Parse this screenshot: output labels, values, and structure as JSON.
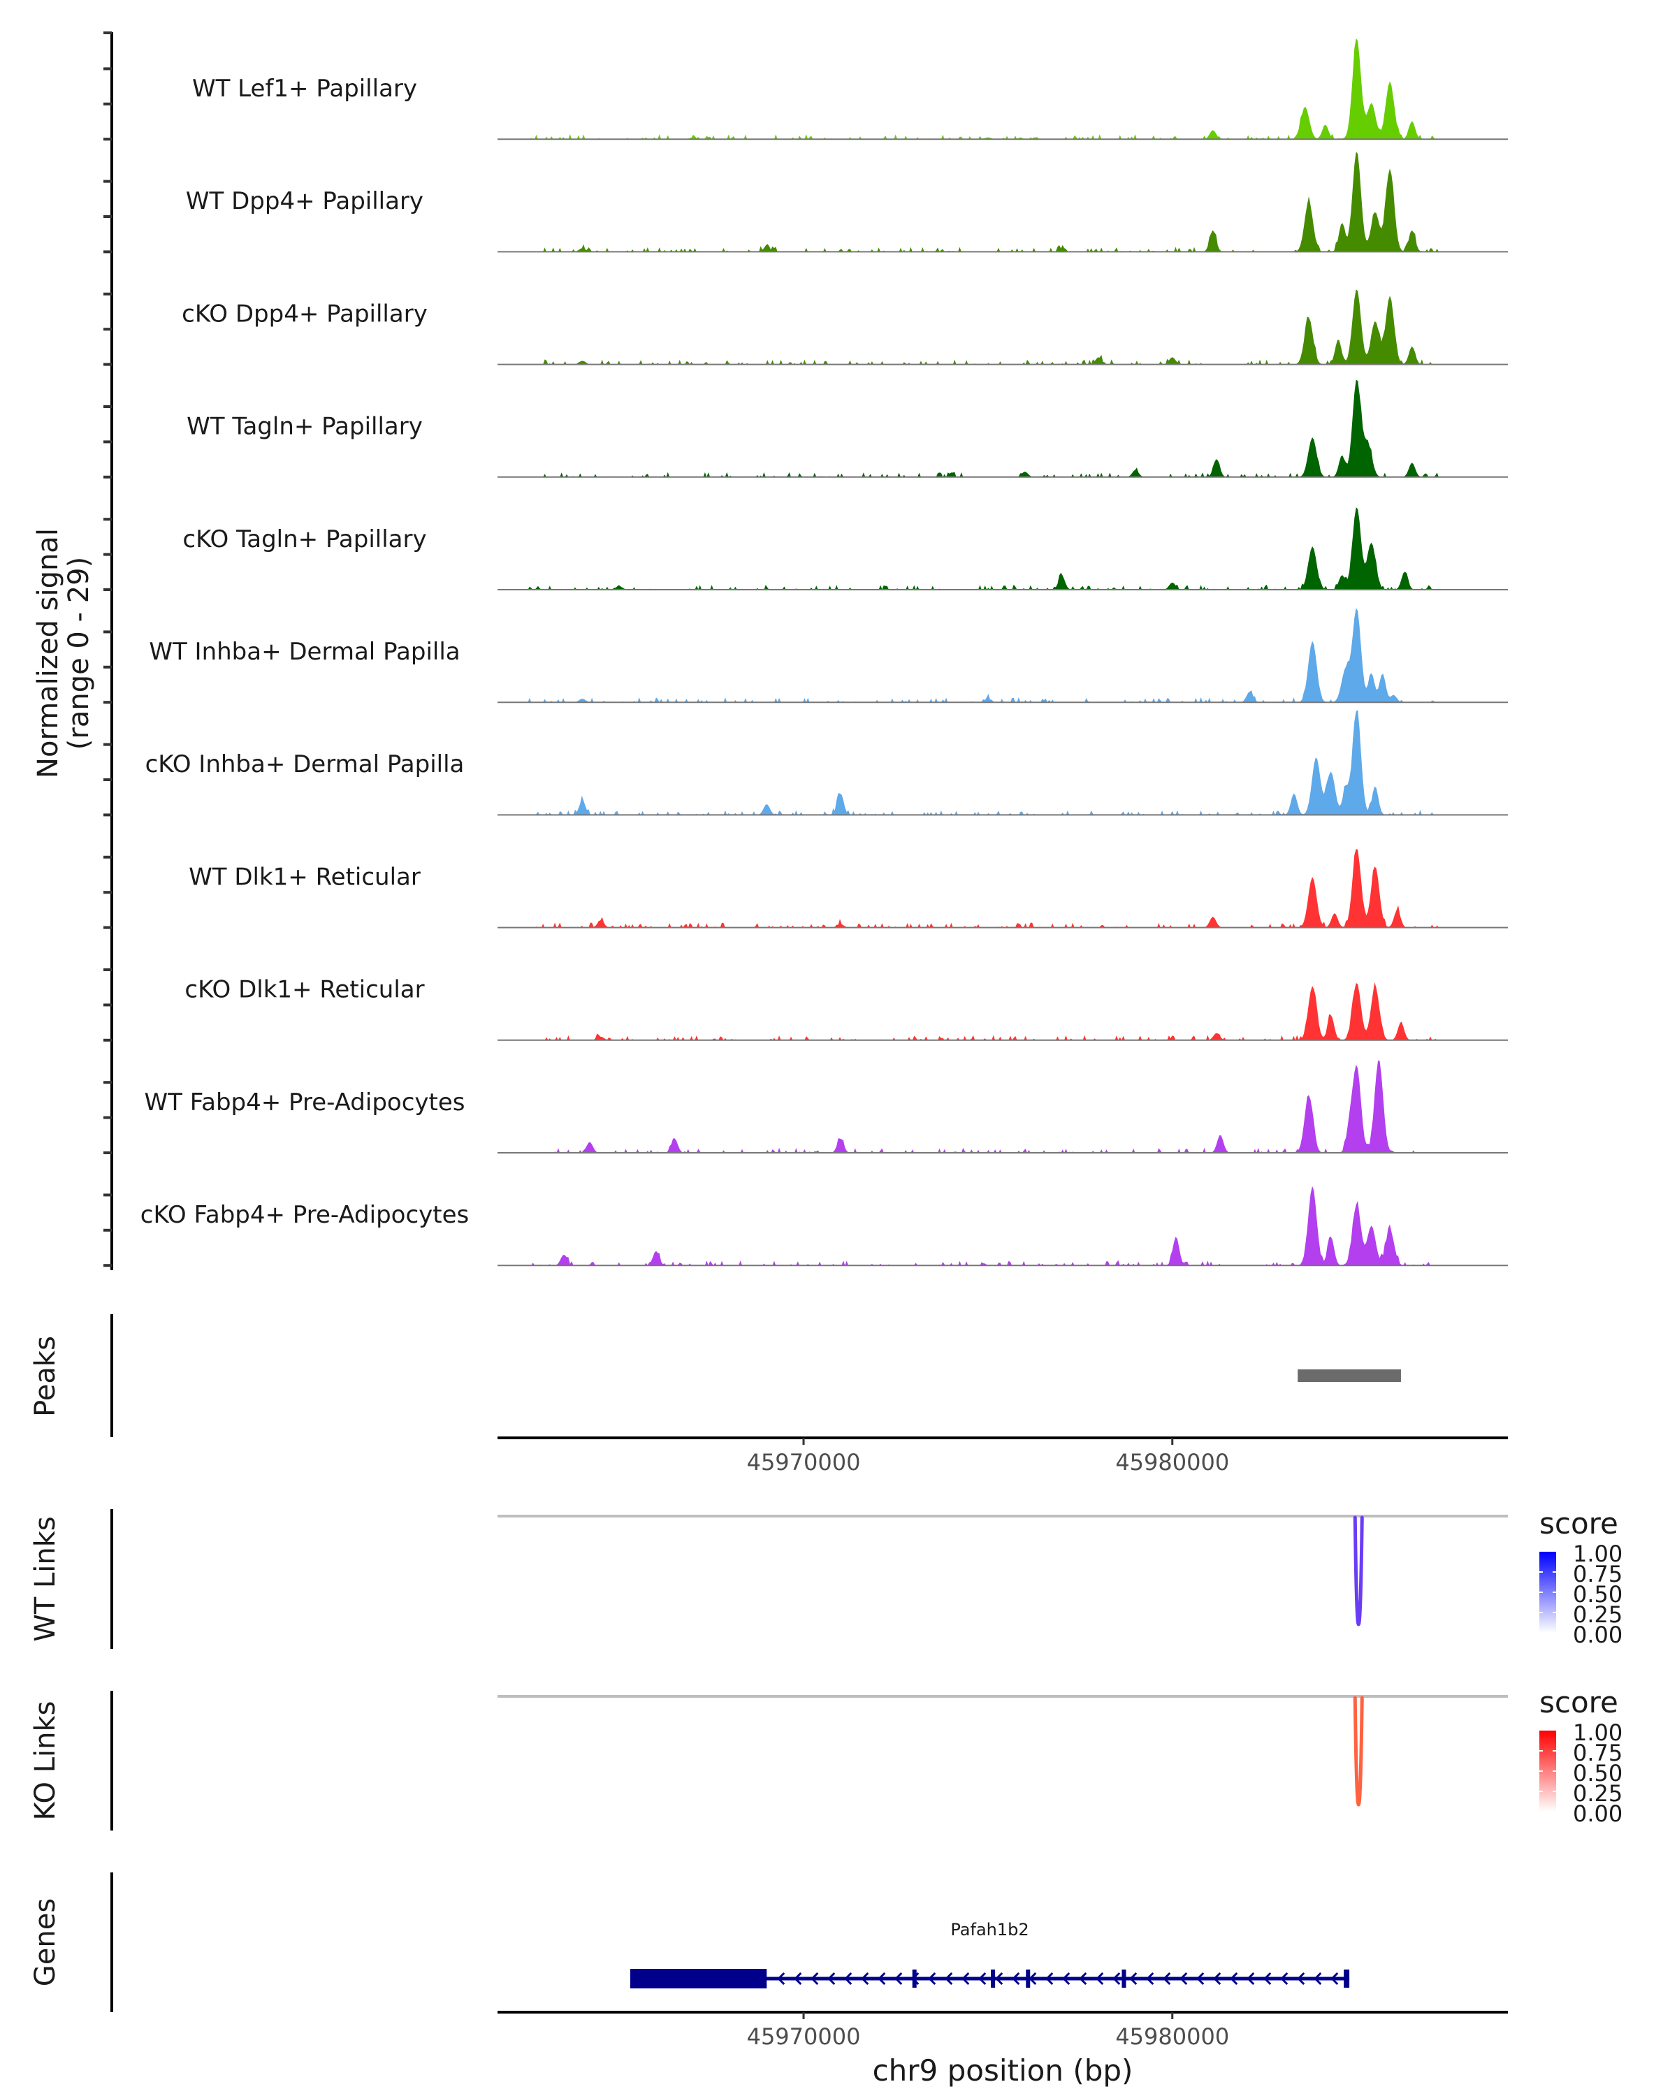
{
  "chart_data": {
    "type": "area",
    "title": "",
    "coverage_ylabel_line1": "Normalized signal",
    "coverage_ylabel_line2": "(range 0 - 29)",
    "y_range": [
      0,
      29
    ],
    "xlabel": "chr9 position (bp)",
    "x_range": [
      45961700,
      45989100
    ],
    "x_ticks": [
      45970000,
      45980000
    ],
    "x_tick_labels": [
      "45970000",
      "45980000"
    ],
    "tracks": [
      {
        "name": "WT Lef1+ Papillary",
        "color": "#66CD00",
        "peaks": [
          [
            45983600,
            9
          ],
          [
            45984150,
            4
          ],
          [
            45985000,
            28
          ],
          [
            45985400,
            10
          ],
          [
            45985900,
            16
          ],
          [
            45981100,
            2.5
          ],
          [
            45986500,
            5
          ],
          [
            45975000,
            0.5
          ],
          [
            45967000,
            0.5
          ]
        ]
      },
      {
        "name": "WT Dpp4+ Papillary",
        "color": "#458B00",
        "peaks": [
          [
            45983700,
            14
          ],
          [
            45985000,
            28
          ],
          [
            45985500,
            11
          ],
          [
            45985900,
            23
          ],
          [
            45984600,
            8
          ],
          [
            45981100,
            6
          ],
          [
            45986500,
            6
          ],
          [
            45977000,
            1
          ],
          [
            45969000,
            1.5
          ],
          [
            45964000,
            1
          ]
        ]
      },
      {
        "name": "cKO Dpp4+ Papillary",
        "color": "#458B00",
        "peaks": [
          [
            45983700,
            13
          ],
          [
            45985000,
            21
          ],
          [
            45985500,
            12
          ],
          [
            45985900,
            19
          ],
          [
            45984500,
            7
          ],
          [
            45986500,
            5
          ],
          [
            45980000,
            2
          ],
          [
            45978000,
            2
          ],
          [
            45964000,
            1
          ]
        ]
      },
      {
        "name": "WT Tagln+ Papillary",
        "color": "#006400",
        "peaks": [
          [
            45983800,
            11
          ],
          [
            45985000,
            27
          ],
          [
            45985300,
            9
          ],
          [
            45984600,
            6
          ],
          [
            45981200,
            5
          ],
          [
            45986500,
            4
          ],
          [
            45979000,
            2
          ],
          [
            45976000,
            1.5
          ]
        ]
      },
      {
        "name": "cKO Tagln+ Papillary",
        "color": "#006400",
        "peaks": [
          [
            45983800,
            12
          ],
          [
            45985000,
            23
          ],
          [
            45985400,
            13
          ],
          [
            45984600,
            4
          ],
          [
            45986300,
            5
          ],
          [
            45977000,
            4
          ],
          [
            45980000,
            2
          ],
          [
            45965000,
            1
          ]
        ]
      },
      {
        "name": "WT Inhba+ Dermal Papilla",
        "color": "#5DA9E9",
        "peaks": [
          [
            45983800,
            17
          ],
          [
            45985000,
            26
          ],
          [
            45984700,
            9
          ],
          [
            45985400,
            8
          ],
          [
            45985700,
            8
          ],
          [
            45982100,
            3
          ],
          [
            45986000,
            2
          ],
          [
            45975000,
            1
          ],
          [
            45964000,
            1
          ]
        ]
      },
      {
        "name": "cKO Inhba+ Dermal Papilla",
        "color": "#5DA9E9",
        "peaks": [
          [
            45983900,
            16
          ],
          [
            45985000,
            29
          ],
          [
            45984300,
            12
          ],
          [
            45984700,
            7
          ],
          [
            45985500,
            8
          ],
          [
            45983300,
            6
          ],
          [
            45971000,
            6
          ],
          [
            45964000,
            4
          ],
          [
            45969000,
            3
          ]
        ]
      },
      {
        "name": "WT Dlk1+ Reticular",
        "color": "#FF3333",
        "peaks": [
          [
            45983800,
            14
          ],
          [
            45985000,
            22
          ],
          [
            45985500,
            17
          ],
          [
            45984400,
            4
          ],
          [
            45986100,
            5
          ],
          [
            45981100,
            3
          ],
          [
            45964500,
            2
          ],
          [
            45971000,
            1
          ]
        ]
      },
      {
        "name": "cKO Dlk1+ Reticular",
        "color": "#FF3333",
        "peaks": [
          [
            45983800,
            15
          ],
          [
            45985000,
            16
          ],
          [
            45985500,
            15
          ],
          [
            45984300,
            7
          ],
          [
            45986200,
            5
          ],
          [
            45981200,
            2
          ],
          [
            45964500,
            1
          ]
        ]
      },
      {
        "name": "WT Fabp4+ Pre-Adipocytes",
        "color": "#B33FEE",
        "peaks": [
          [
            45983700,
            16
          ],
          [
            45985000,
            24
          ],
          [
            45985600,
            26
          ],
          [
            45984800,
            6
          ],
          [
            45981300,
            5
          ],
          [
            45966500,
            4
          ],
          [
            45964200,
            3
          ],
          [
            45971000,
            4
          ]
        ]
      },
      {
        "name": "cKO Fabp4+ Pre-Adipocytes",
        "color": "#B33FEE",
        "peaks": [
          [
            45983800,
            22
          ],
          [
            45985000,
            17
          ],
          [
            45985400,
            11
          ],
          [
            45985900,
            10
          ],
          [
            45984300,
            8
          ],
          [
            45980100,
            8
          ],
          [
            45966000,
            4
          ],
          [
            45963500,
            3
          ]
        ]
      }
    ],
    "peaks_track": {
      "label": "Peaks",
      "regions": [
        [
          45983400,
          45986200
        ]
      ],
      "color": "#6B6B6B"
    },
    "links": [
      {
        "label": "WT Links",
        "anchor_bp": 45985050,
        "width_bp": 80,
        "score_color": "#6A3DF5",
        "legend_title": "score",
        "legend_low": "#FFFFFF",
        "legend_high": "#0000FF"
      },
      {
        "label": "KO Links",
        "anchor_bp": 45985050,
        "width_bp": 80,
        "score_color": "#FF6240",
        "legend_title": "score",
        "legend_low": "#FFFFFF",
        "legend_high": "#FF0000"
      }
    ],
    "legend_ticks": [
      "1.00",
      "0.75",
      "0.50",
      "0.25",
      "0.00"
    ],
    "genes": {
      "label": "Genes",
      "name": "Pafah1b2",
      "strand": "-",
      "color": "#00008B",
      "start": 45965300,
      "end": 45984800,
      "exons": [
        [
          45965300,
          45969000
        ],
        [
          45972950,
          45973050
        ],
        [
          45975080,
          45975180
        ],
        [
          45976030,
          45976130
        ],
        [
          45978630,
          45978730
        ],
        [
          45984650,
          45984800
        ]
      ]
    }
  }
}
